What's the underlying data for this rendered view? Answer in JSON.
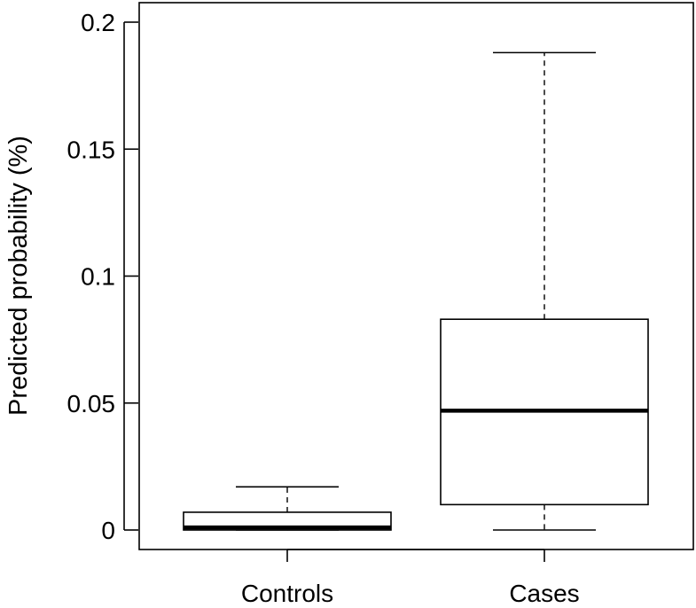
{
  "chart_data": {
    "type": "boxplot",
    "title": "",
    "xlabel": "",
    "ylabel": "Predicted probability (%)",
    "ylim": [
      -0.008,
      0.202
    ],
    "yticks": [
      0,
      0.05,
      0.1,
      0.15,
      0.2
    ],
    "ytick_labels": [
      "0",
      "0.05",
      "0.1",
      "0.15",
      "0.2"
    ],
    "grid": false,
    "categories": [
      "Controls",
      "Cases"
    ],
    "boxes": [
      {
        "name": "Controls",
        "min": 0.0,
        "q1": 0.0,
        "median": 0.001,
        "q3": 0.007,
        "max": 0.017
      },
      {
        "name": "Cases",
        "min": 0.0,
        "q1": 0.01,
        "median": 0.047,
        "q3": 0.083,
        "max": 0.188
      }
    ]
  }
}
